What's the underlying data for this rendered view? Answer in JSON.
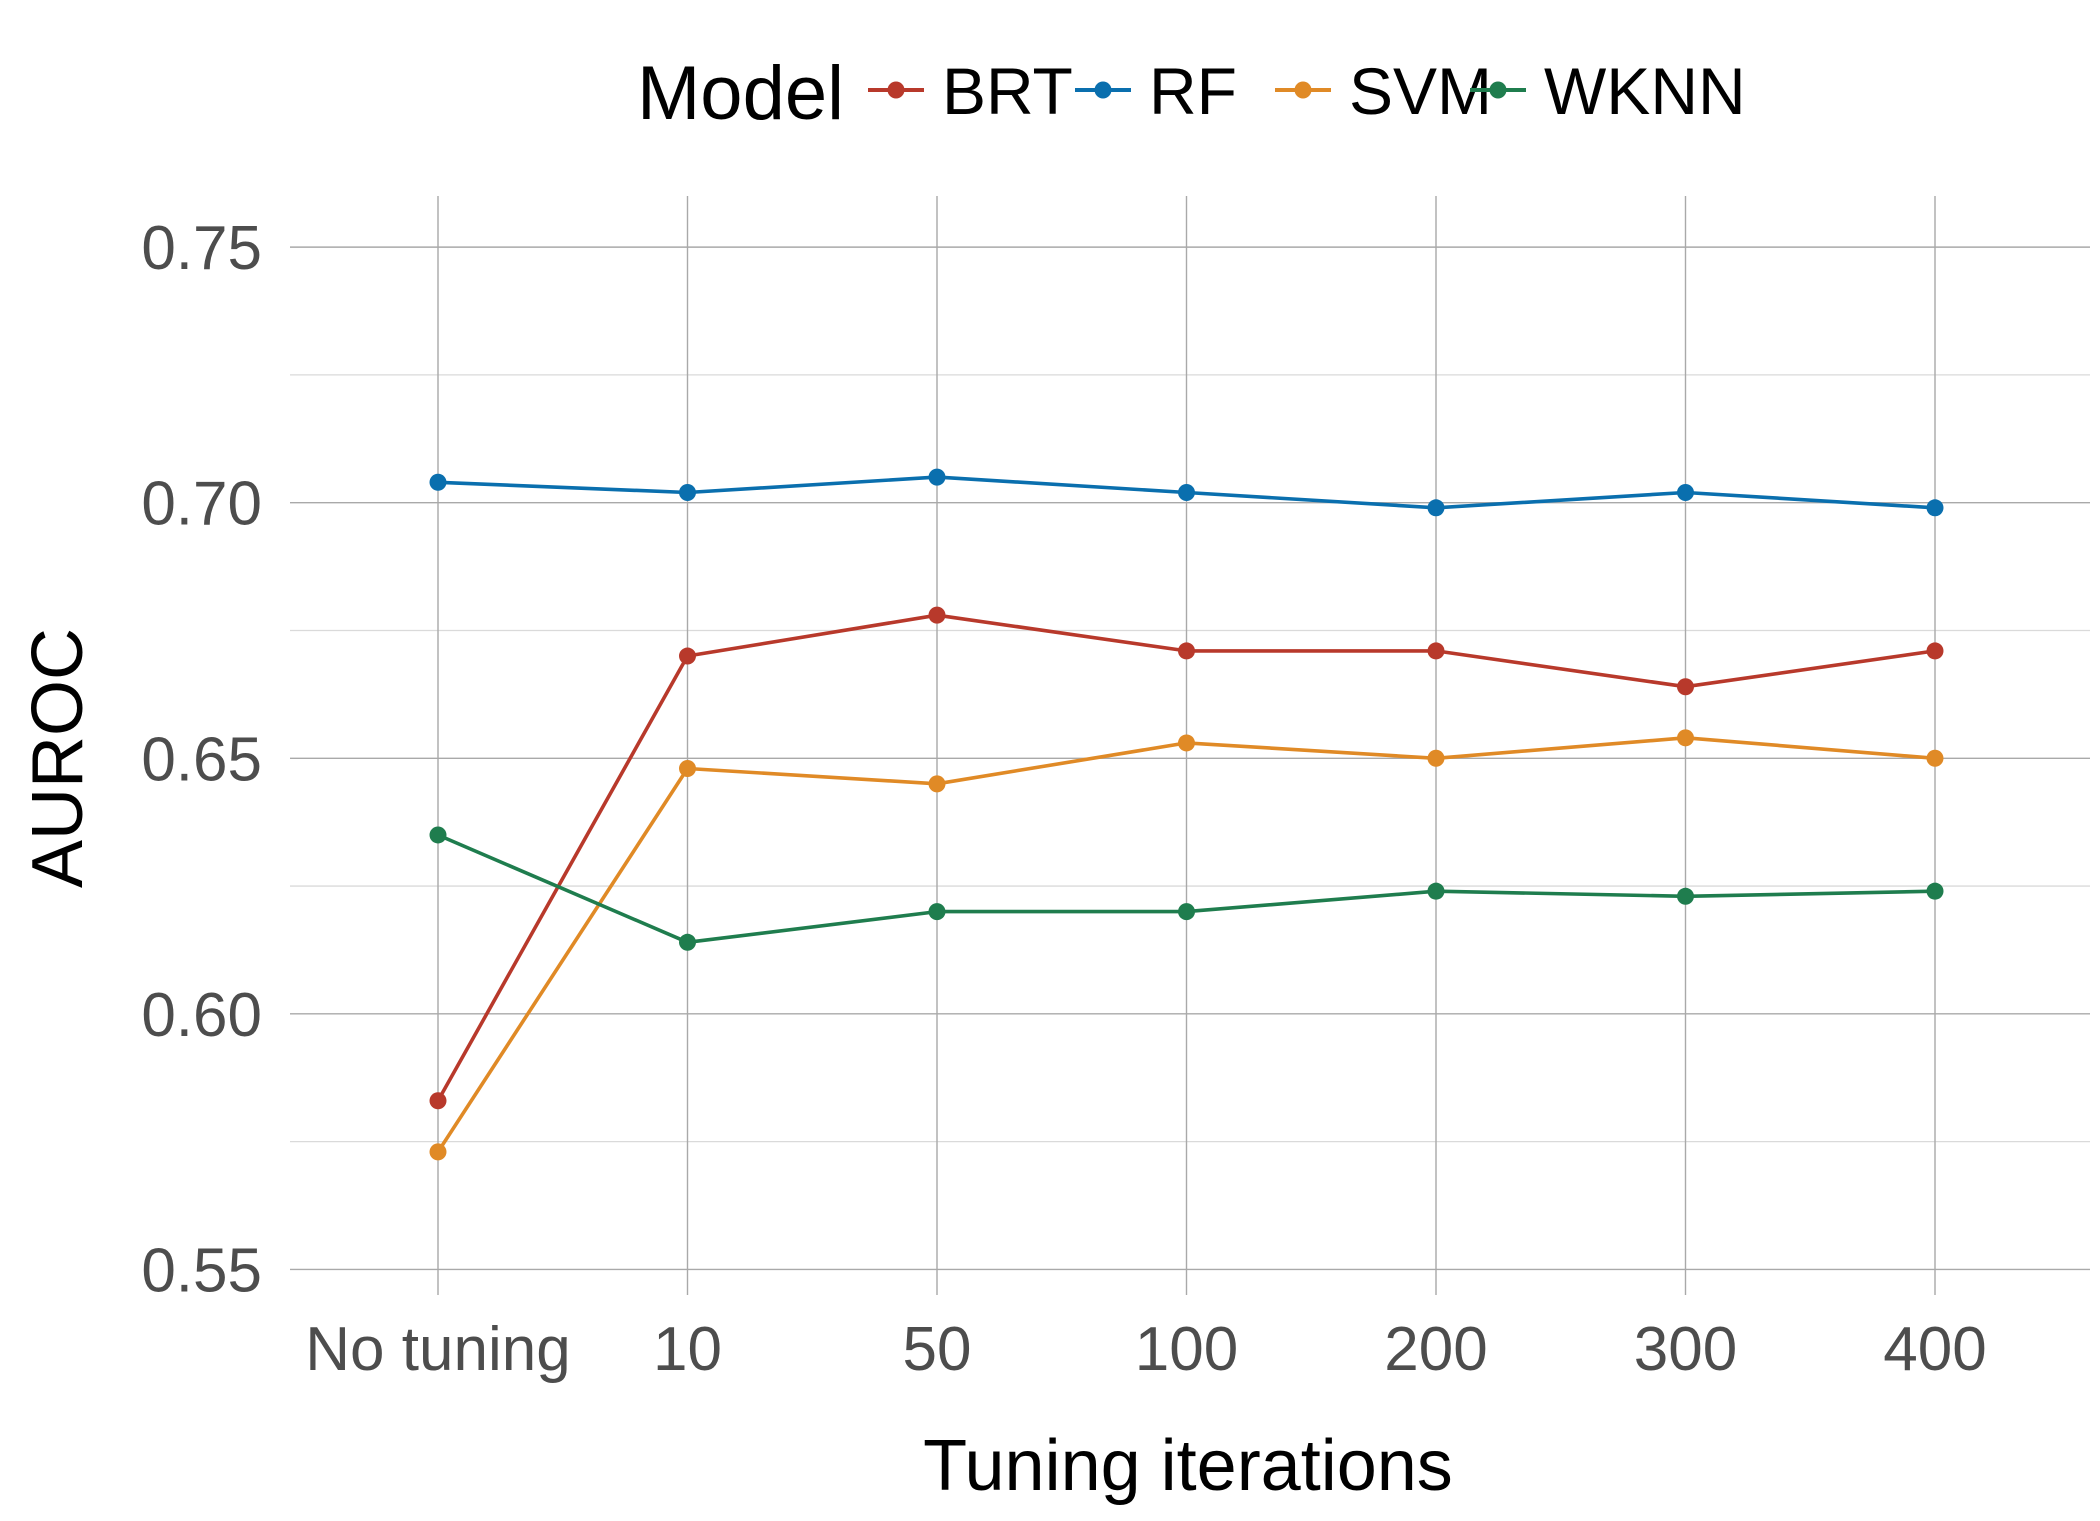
{
  "chart_data": {
    "type": "line",
    "xlabel": "Tuning iterations",
    "ylabel": "AUROC",
    "categories": [
      "No tuning",
      "10",
      "50",
      "100",
      "200",
      "300",
      "400"
    ],
    "ylim": [
      0.545,
      0.76
    ],
    "yticks": [
      "0.55",
      "0.60",
      "0.65",
      "0.70",
      "0.75"
    ],
    "legend": {
      "title": "Model",
      "position": "top"
    },
    "grid": true,
    "series": [
      {
        "name": "BRT",
        "color": "#b8392b",
        "values": [
          0.583,
          0.67,
          0.678,
          0.671,
          0.671,
          0.664,
          0.671
        ]
      },
      {
        "name": "RF",
        "color": "#0a6fae",
        "values": [
          0.704,
          0.702,
          0.705,
          0.702,
          0.699,
          0.702,
          0.699
        ]
      },
      {
        "name": "SVM",
        "color": "#e08a26",
        "values": [
          0.573,
          0.648,
          0.645,
          0.653,
          0.65,
          0.654,
          0.65
        ]
      },
      {
        "name": "WKNN",
        "color": "#1f7d4e",
        "values": [
          0.635,
          0.614,
          0.62,
          0.62,
          0.624,
          0.623,
          0.624
        ]
      }
    ]
  }
}
